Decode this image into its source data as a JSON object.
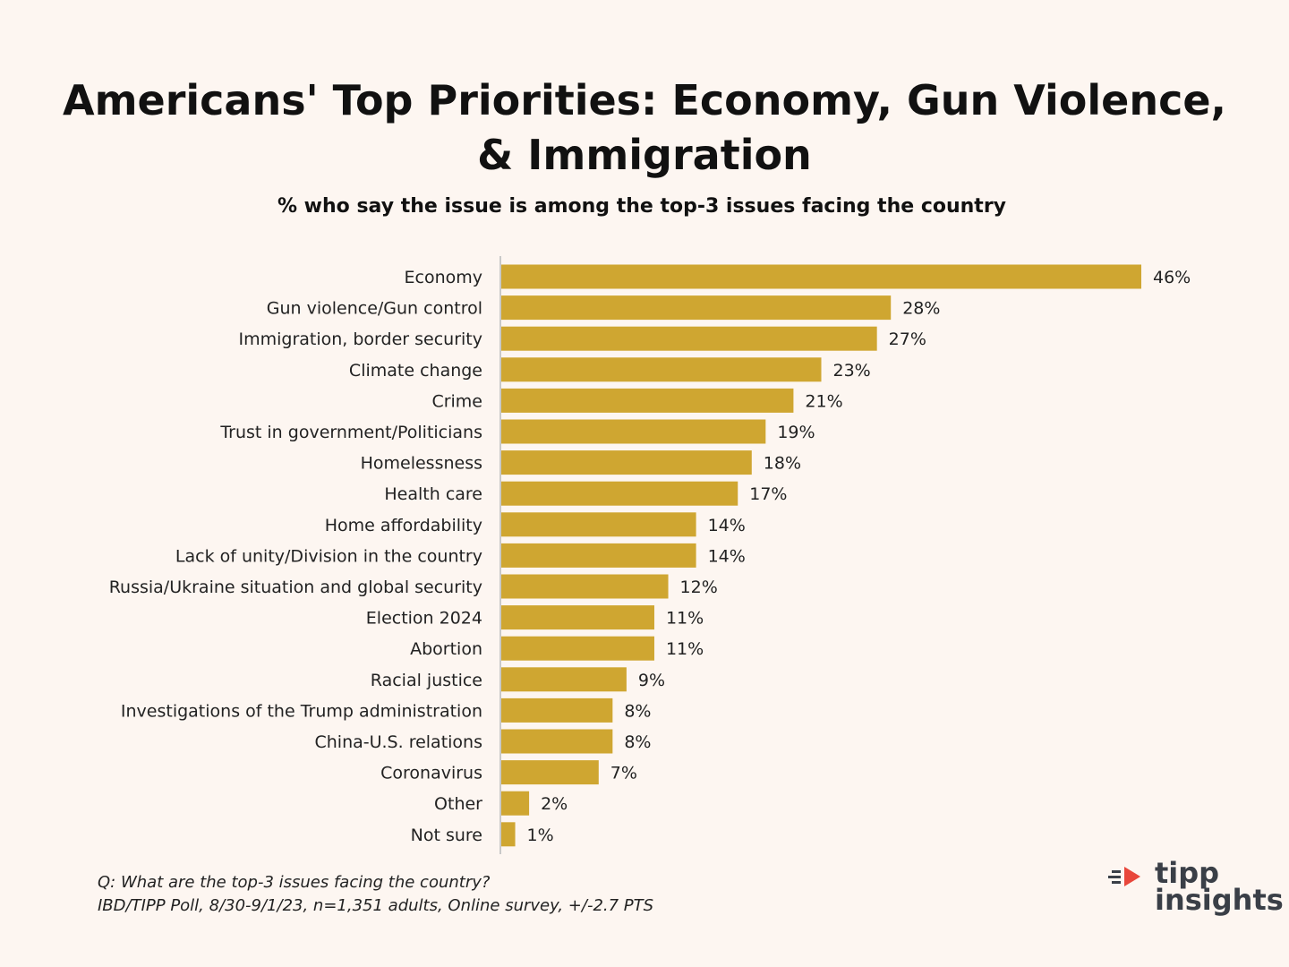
{
  "header": {
    "title": "Americans' Top Priorities: Economy, Gun Violence, & Immigration",
    "subtitle": "% who say the issue is among the top-3 issues facing the country"
  },
  "chart_data": {
    "type": "bar",
    "orientation": "horizontal",
    "title": "Americans' Top Priorities: Economy, Gun Violence, & Immigration",
    "subtitle": "% who say the issue is among the top-3 issues facing the country",
    "categories": [
      "Economy",
      "Gun violence/Gun control",
      "Immigration, border security",
      "Climate change",
      "Crime",
      "Trust in government/Politicians",
      "Homelessness",
      "Health care",
      "Home affordability",
      "Lack of unity/Division in the country",
      "Russia/Ukraine situation and global security",
      "Election 2024",
      "Abortion",
      "Racial justice",
      "Investigations of the Trump administration",
      "China-U.S. relations",
      "Coronavirus",
      "Other",
      "Not sure"
    ],
    "values": [
      46,
      28,
      27,
      23,
      21,
      19,
      18,
      17,
      14,
      14,
      12,
      11,
      11,
      9,
      8,
      8,
      7,
      2,
      1
    ],
    "value_labels": [
      "46%",
      "28%",
      "27%",
      "23%",
      "21%",
      "19%",
      "18%",
      "17%",
      "14%",
      "14%",
      "12%",
      "11%",
      "11%",
      "9%",
      "8%",
      "8%",
      "7%",
      "2%",
      "1%"
    ],
    "unit": "%",
    "xlim": [
      0,
      50
    ],
    "grid": false,
    "legend": "none",
    "bar_color": "#cfa631"
  },
  "footer": {
    "question": "Q:  What are the top-3 issues facing the country?",
    "source": "IBD/TIPP Poll, 8/30-9/1/23, n=1,351 adults, Online survey, +/-2.7 PTS"
  },
  "logo": {
    "line1": "tipp",
    "line2": "insights",
    "accent_color": "#e8473b",
    "text_color": "#3a3f47"
  }
}
